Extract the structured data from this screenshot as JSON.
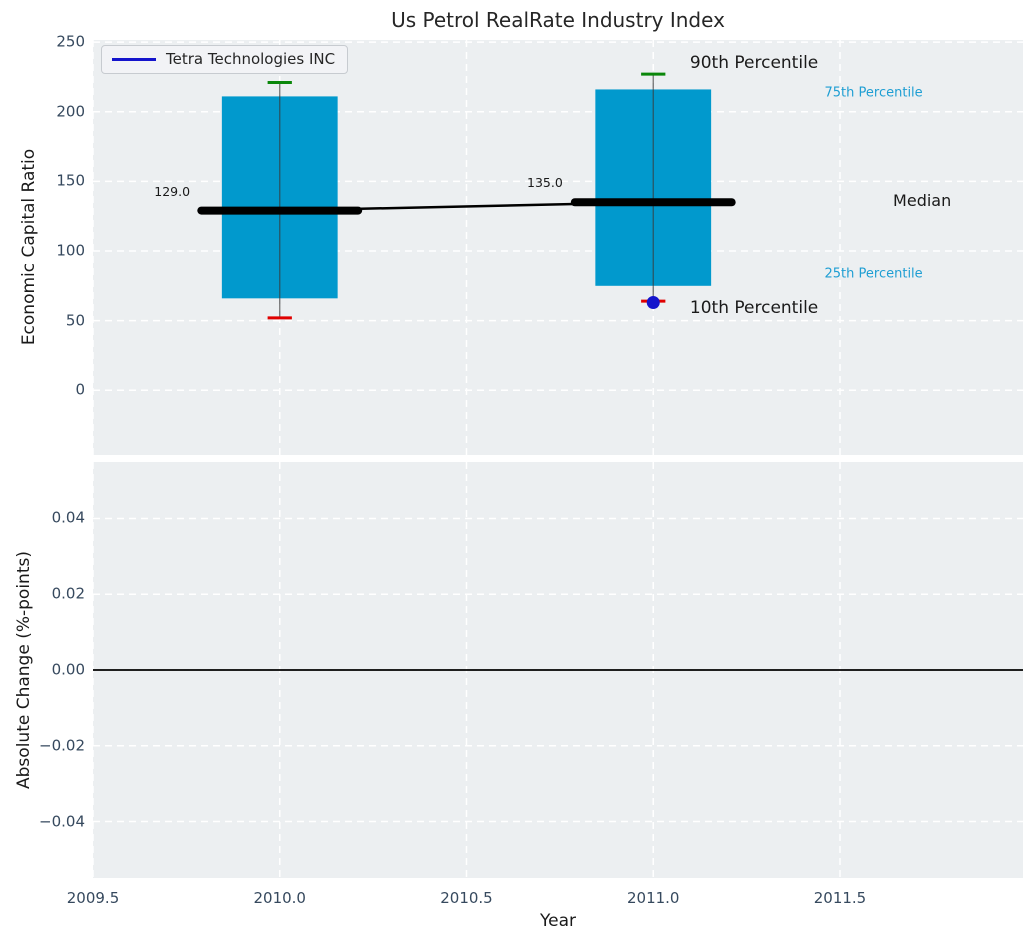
{
  "title": "Us Petrol RealRate Industry Index",
  "legend": {
    "label": "Tetra Technologies INC"
  },
  "palette": {
    "bar": "#0199CD",
    "median": "#000000",
    "trend_line": "#000000",
    "whisker": "#3A3A3A",
    "whisker_top_cap": "#0A870A",
    "whisker_bottom_cap": "#E00000",
    "company_marker": "#1414CC",
    "cyan_label": "#1E9ED3",
    "axes_bg": "#ECEFF1",
    "grid": "#FFFFFF",
    "tick_text": "#36495E",
    "text": "#1A1A1A",
    "title_text": "#262626",
    "legend_bg": "#F2F3F6",
    "legend_border": "#C7CBD0",
    "zero_line": "#000000"
  },
  "chart_data": [
    {
      "type": "box-whisker-bars",
      "ylabel": "Economic Capital Ratio",
      "xlim": [
        2009.5,
        2011.99
      ],
      "ylim": [
        -46.5,
        251.5
      ],
      "yticks": [
        {
          "v": 250,
          "label": "250"
        },
        {
          "v": 200,
          "label": "200"
        },
        {
          "v": 150,
          "label": "150"
        },
        {
          "v": 100,
          "label": "100"
        },
        {
          "v": 50,
          "label": "50"
        },
        {
          "v": 0,
          "label": "0"
        }
      ],
      "xtick_positions": [
        2009.5,
        2010.0,
        2010.5,
        2011.0,
        2011.5
      ],
      "grid": "white-dashed",
      "box_width_years": 0.31,
      "median_bar_width_years": 0.42,
      "cap_width_years": 0.065,
      "boxes": [
        {
          "year": 2010,
          "p10": 52,
          "q25": 66,
          "median": 129,
          "q75": 211,
          "p90": 221
        },
        {
          "year": 2011,
          "p10": 64,
          "q25": 75,
          "median": 135,
          "q75": 216,
          "p90": 227,
          "company_value": 63
        }
      ],
      "annotations": [
        {
          "text": "129.0",
          "x": 2009.712,
          "y": 142,
          "color": "text",
          "size": 12.5
        },
        {
          "text": "135.0",
          "x": 2010.71,
          "y": 149,
          "color": "text",
          "size": 12.5
        },
        {
          "text": "90th Percentile",
          "x": 2011.27,
          "y": 234,
          "color": "text",
          "size": 17
        },
        {
          "text": "10th Percentile",
          "x": 2011.27,
          "y": 58,
          "color": "text",
          "size": 17
        },
        {
          "text": "75th Percentile",
          "x": 2011.59,
          "y": 213,
          "color": "cyan_label",
          "size": 13
        },
        {
          "text": "Median",
          "x": 2011.72,
          "y": 136,
          "color": "text",
          "size": 16
        },
        {
          "text": "25th Percentile",
          "x": 2011.59,
          "y": 83,
          "color": "cyan_label",
          "size": 13
        }
      ]
    },
    {
      "type": "line",
      "ylabel": "Absolute Change (%-points)",
      "xlabel": "Year",
      "xlim": [
        2009.5,
        2011.99
      ],
      "ylim": [
        -0.0549,
        0.0549
      ],
      "yticks": [
        {
          "v": 0.04,
          "label": "0.04"
        },
        {
          "v": 0.02,
          "label": "0.02"
        },
        {
          "v": 0,
          "label": "0.00"
        },
        {
          "v": -0.02,
          "label": "−0.02"
        },
        {
          "v": -0.04,
          "label": "−0.04"
        }
      ],
      "xticks": [
        {
          "v": 2009.5,
          "label": "2009.5"
        },
        {
          "v": 2010.0,
          "label": "2010.0"
        },
        {
          "v": 2010.5,
          "label": "2010.5"
        },
        {
          "v": 2011.0,
          "label": "2011.0"
        },
        {
          "v": 2011.5,
          "label": "2011.5"
        }
      ],
      "grid": "white-dashed",
      "zero_line": true,
      "series": []
    }
  ]
}
